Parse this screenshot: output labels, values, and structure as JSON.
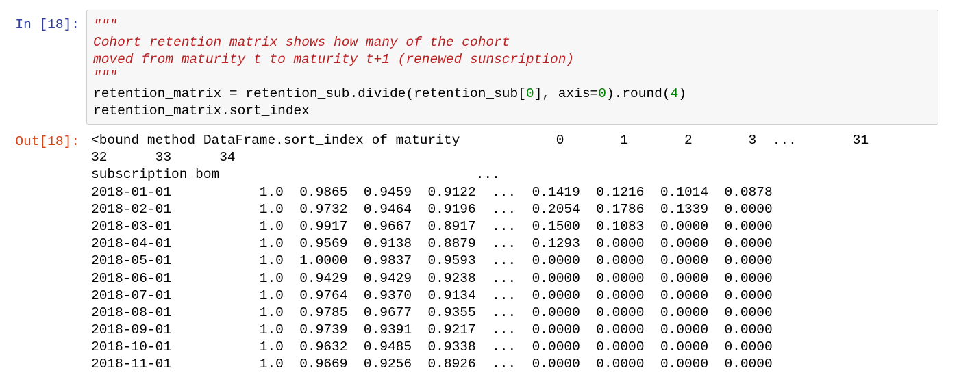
{
  "cell": {
    "in_prompt": "In [18]:",
    "out_prompt": "Out[18]:"
  },
  "code": {
    "docstring_open": "\"\"\"",
    "docstring_line1": "Cohort retention matrix shows how many of the cohort",
    "docstring_line2": "moved from maturity t to maturity t+1 (renewed sunscription)",
    "docstring_close": "\"\"\"",
    "line3_before": "retention_matrix = retention_sub.divide(retention_sub[",
    "line3_index": "0",
    "line3_middle": "], axis=",
    "line3_axis": "0",
    "line3_round_open": ").round(",
    "line3_round": "4",
    "line3_end": ")",
    "line4": "retention_matrix.sort_index"
  },
  "output": {
    "lines": [
      "<bound method DataFrame.sort_index of maturity            0       1       2       3  ...       31  ",
      "32      33      34",
      "subscription_bom                                ...                                ",
      "2018-01-01           1.0  0.9865  0.9459  0.9122  ...  0.1419  0.1216  0.1014  0.0878",
      "2018-02-01           1.0  0.9732  0.9464  0.9196  ...  0.2054  0.1786  0.1339  0.0000",
      "2018-03-01           1.0  0.9917  0.9667  0.8917  ...  0.1500  0.1083  0.0000  0.0000",
      "2018-04-01           1.0  0.9569  0.9138  0.8879  ...  0.1293  0.0000  0.0000  0.0000",
      "2018-05-01           1.0  1.0000  0.9837  0.9593  ...  0.0000  0.0000  0.0000  0.0000",
      "2018-06-01           1.0  0.9429  0.9429  0.9238  ...  0.0000  0.0000  0.0000  0.0000",
      "2018-07-01           1.0  0.9764  0.9370  0.9134  ...  0.0000  0.0000  0.0000  0.0000",
      "2018-08-01           1.0  0.9785  0.9677  0.9355  ...  0.0000  0.0000  0.0000  0.0000",
      "2018-09-01           1.0  0.9739  0.9391  0.9217  ...  0.0000  0.0000  0.0000  0.0000",
      "2018-10-01           1.0  0.9632  0.9485  0.9338  ...  0.0000  0.0000  0.0000  0.0000",
      "2018-11-01           1.0  0.9669  0.9256  0.8926  ...  0.0000  0.0000  0.0000  0.0000"
    ]
  },
  "colors": {
    "in_prompt": "#303f9f",
    "out_prompt": "#d84315",
    "docstring": "#ba2121",
    "number": "#008000",
    "input_background": "#f7f7f7",
    "input_border": "#cfcfcf"
  }
}
